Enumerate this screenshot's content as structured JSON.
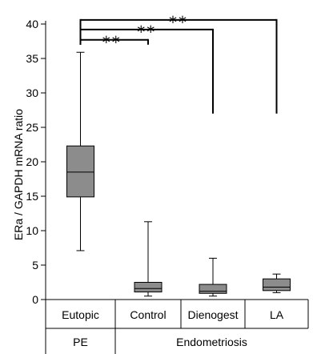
{
  "chart_data": {
    "type": "boxplot",
    "ylabel": "ERa / GAPDH mRNA ratio",
    "ylim": [
      0,
      40
    ],
    "yticks": [
      0,
      5,
      10,
      15,
      20,
      25,
      30,
      35,
      40
    ],
    "box_color": "#8c8c8c",
    "categories": [
      {
        "label": "Eutopic",
        "group": "PE",
        "min": 7.1,
        "q1": 14.9,
        "median": 18.5,
        "q3": 22.3,
        "max": 35.9
      },
      {
        "label": "Control",
        "group": "Endometriosis",
        "min": 0.5,
        "q1": 1.1,
        "median": 1.6,
        "q3": 2.5,
        "max": 11.3
      },
      {
        "label": "Dienogest",
        "group": "Endometriosis",
        "min": 0.5,
        "q1": 0.9,
        "median": 1.2,
        "q3": 2.2,
        "max": 6.0
      },
      {
        "label": "LA",
        "group": "Endometriosis",
        "min": 1.0,
        "q1": 1.3,
        "median": 1.8,
        "q3": 3.0,
        "max": 3.7
      }
    ],
    "groups": [
      "PE",
      "Endometriosis"
    ],
    "significance": [
      {
        "from": 0,
        "to": 1,
        "label": "**",
        "y": 37.7,
        "drop_to": 37.0
      },
      {
        "from": 0,
        "to": 2,
        "label": "**",
        "y": 39.2,
        "drop_to": 27.0
      },
      {
        "from": 0,
        "to": 3,
        "label": "**",
        "y": 40.6,
        "drop_to": 27.0
      }
    ]
  }
}
